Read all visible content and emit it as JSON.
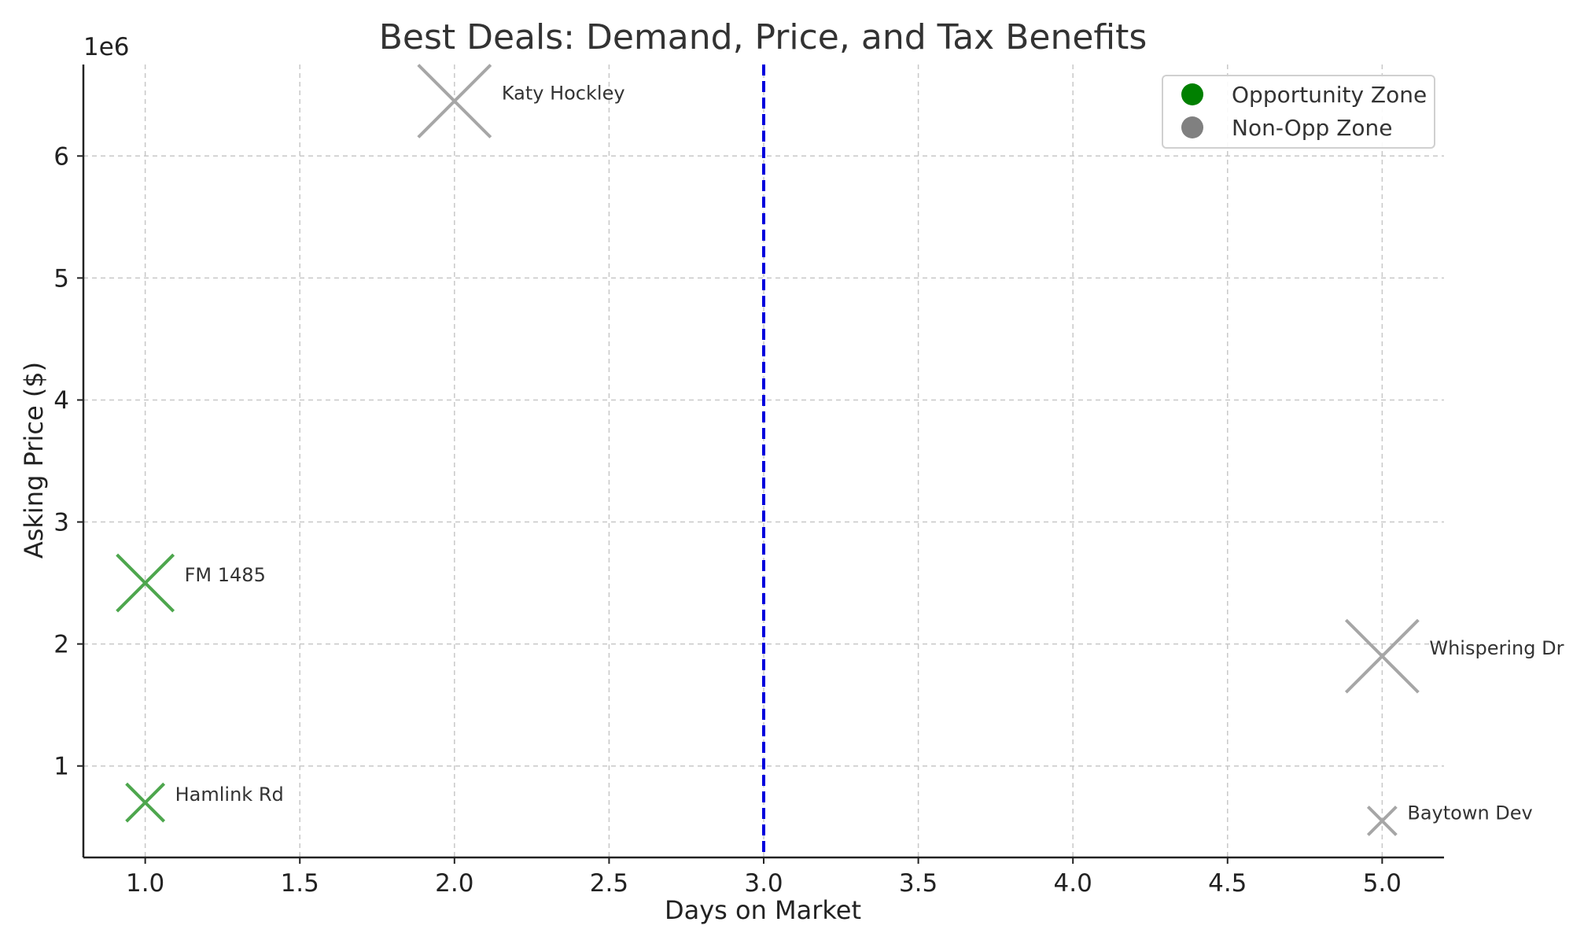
{
  "chart_data": {
    "type": "scatter",
    "title": "Best Deals: Demand, Price, and Tax Benefits",
    "xlabel": "Days on Market",
    "ylabel": "Asking Price ($)",
    "y_offset_label": "1e6",
    "xlim": [
      0.8,
      5.2
    ],
    "ylim": [
      0.25,
      6.75
    ],
    "x_ticks": [
      1.0,
      1.5,
      2.0,
      2.5,
      3.0,
      3.5,
      4.0,
      4.5,
      5.0
    ],
    "x_tick_labels": [
      "1.0",
      "1.5",
      "2.0",
      "2.5",
      "3.0",
      "3.5",
      "4.0",
      "4.5",
      "5.0"
    ],
    "y_ticks": [
      1,
      2,
      3,
      4,
      5,
      6
    ],
    "y_tick_labels": [
      "1",
      "2",
      "3",
      "4",
      "5",
      "6"
    ],
    "y_unit": "millions of dollars",
    "grid": true,
    "marker": "x",
    "reference_line": {
      "axis": "x",
      "value": 3.0,
      "style": "dashed",
      "color": "#0000dd"
    },
    "legend": {
      "position": "top-right",
      "entries": [
        {
          "label": "Opportunity Zone",
          "color": "#008000"
        },
        {
          "label": "Non-Opp Zone",
          "color": "#808080"
        }
      ]
    },
    "points": [
      {
        "label": "Katy Hockley",
        "x": 2.0,
        "y": 6.45,
        "size": "large",
        "zone": "Non-Opp Zone",
        "color": "#a6a6a6"
      },
      {
        "label": "FM 1485",
        "x": 1.0,
        "y": 2.5,
        "size": "medium",
        "zone": "Opportunity Zone",
        "color": "#4da64d"
      },
      {
        "label": "Hamlink Rd",
        "x": 1.0,
        "y": 0.7,
        "size": "small",
        "zone": "Opportunity Zone",
        "color": "#4da64d"
      },
      {
        "label": "Whispering Dr",
        "x": 5.0,
        "y": 1.9,
        "size": "large",
        "zone": "Non-Opp Zone",
        "color": "#a6a6a6"
      },
      {
        "label": "Baytown Dev",
        "x": 5.0,
        "y": 0.55,
        "size": "tiny",
        "zone": "Non-Opp Zone",
        "color": "#a6a6a6"
      }
    ]
  }
}
